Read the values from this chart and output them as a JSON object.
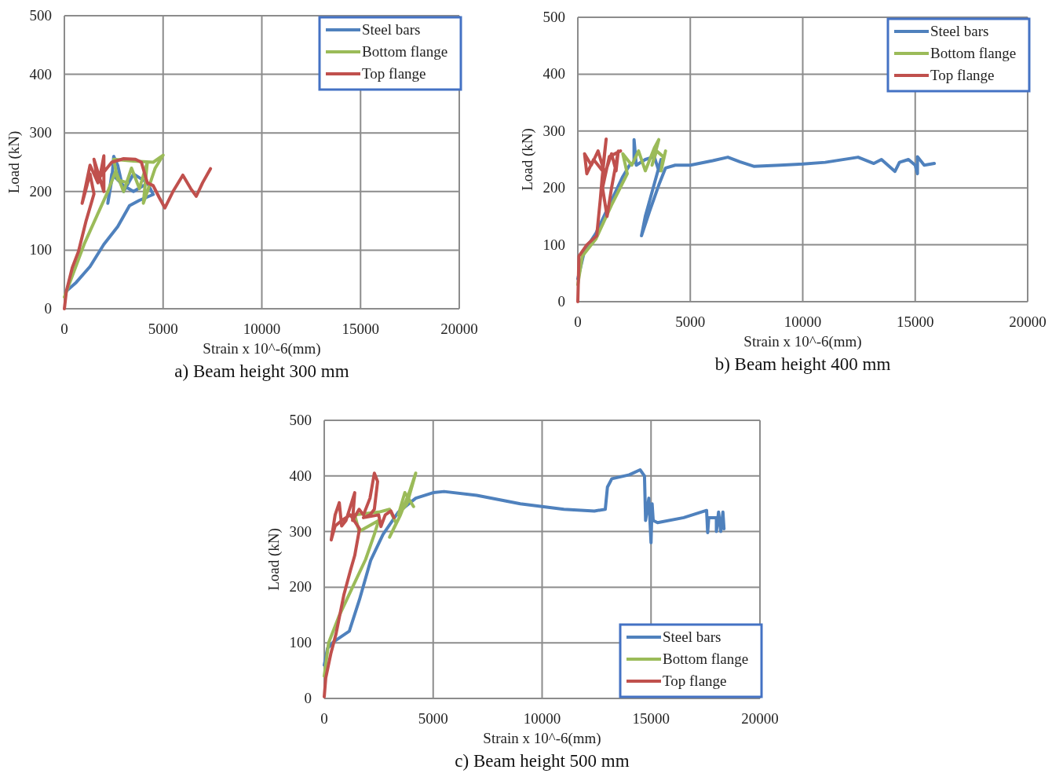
{
  "chart_data": [
    {
      "type": "line",
      "title": "a) Beam height 300 mm",
      "xlabel": "Strain x 10^-6(mm)",
      "ylabel": "Load (kN)",
      "xlim": [
        0,
        20000
      ],
      "ylim": [
        0,
        500
      ],
      "xticks": [
        0,
        5000,
        10000,
        15000,
        20000
      ],
      "yticks": [
        0,
        100,
        200,
        300,
        400,
        500
      ],
      "grid": true,
      "legend": "top right",
      "series": [
        {
          "name": "Steel bars",
          "color": "#4f81bd",
          "x": [
            100,
            600,
            1300,
            2000,
            2700,
            3300,
            3800,
            4500,
            4200,
            3500,
            3000,
            2700,
            2500,
            2400,
            2200,
            2400,
            3000,
            3500,
            4000
          ],
          "values": [
            30,
            45,
            72,
            110,
            140,
            176,
            185,
            195,
            215,
            230,
            200,
            245,
            260,
            220,
            180,
            230,
            210,
            200,
            210
          ]
        },
        {
          "name": "Bottom flange",
          "color": "#9bbb59",
          "x": [
            0,
            1000,
            1800,
            2200,
            2600,
            3000,
            3400,
            3800,
            4200,
            4000,
            4600,
            5000,
            4500,
            3500,
            2500,
            2700,
            3200
          ],
          "values": [
            20,
            110,
            170,
            200,
            235,
            200,
            240,
            205,
            250,
            180,
            240,
            262,
            250,
            252,
            255,
            220,
            215
          ]
        },
        {
          "name": "Top flange",
          "color": "#c0504d",
          "x": [
            0,
            100,
            400,
            716,
            1100,
            1500,
            1300,
            900,
            1300,
            1700,
            1500,
            2000,
            2000,
            1800,
            2400,
            3000,
            3600,
            3900,
            4200,
            4500,
            4800,
            5090,
            5500,
            6000,
            6400,
            6680,
            7000,
            7400
          ],
          "values": [
            0,
            30,
            70,
            98,
            150,
            196,
            230,
            180,
            245,
            215,
            255,
            200,
            261,
            225,
            250,
            256,
            255,
            250,
            215,
            210,
            190,
            172,
            200,
            228,
            205,
            192,
            215,
            239
          ]
        }
      ]
    },
    {
      "type": "line",
      "title": "b) Beam height 400 mm",
      "xlabel": "Strain x 10^-6(mm)",
      "ylabel": "Load (kN)",
      "xlim": [
        0,
        20000
      ],
      "ylim": [
        0,
        500
      ],
      "xticks": [
        0,
        5000,
        10000,
        15000,
        20000
      ],
      "yticks": [
        0,
        100,
        200,
        300,
        400,
        500
      ],
      "grid": true,
      "legend": "top right",
      "series": [
        {
          "name": "Steel bars",
          "color": "#4f81bd",
          "x": [
            0,
            300,
            800,
            1400,
            2000,
            2300,
            2500,
            2500,
            2600,
            3000,
            3400,
            3600,
            3700,
            3000,
            2830,
            3200,
            3600,
            3900,
            4330,
            5000,
            6000,
            6670,
            7200,
            7820,
            9000,
            10000,
            11000,
            12460,
            13160,
            13500,
            14100,
            14300,
            14700,
            15000,
            15100,
            15100,
            15400,
            15850
          ],
          "values": [
            40,
            90,
            120,
            170,
            220,
            240,
            245,
            285,
            240,
            250,
            255,
            230,
            250,
            150,
            116,
            160,
            205,
            235,
            240,
            240,
            248,
            254,
            246,
            238,
            240,
            242,
            245,
            254,
            243,
            250,
            229,
            245,
            250,
            240,
            225,
            255,
            240,
            243
          ]
        },
        {
          "name": "Bottom flange",
          "color": "#9bbb59",
          "x": [
            0,
            200,
            800,
            1500,
            2200,
            2000,
            2400,
            2700,
            3000,
            3400,
            3600,
            3300,
            3500,
            3800,
            3700,
            3900
          ],
          "values": [
            30,
            80,
            110,
            170,
            225,
            260,
            240,
            265,
            230,
            270,
            285,
            240,
            265,
            255,
            230,
            265
          ]
        },
        {
          "name": "Top flange",
          "color": "#c0504d",
          "x": [
            0,
            50,
            400,
            840,
            1000,
            1080,
            1260,
            1100,
            700,
            400,
            300,
            600,
            900,
            1200,
            1500,
            1700,
            1800,
            1500,
            1300,
            1100,
            1400,
            1900
          ],
          "values": [
            0,
            80,
            100,
            116,
            180,
            217,
            286,
            230,
            250,
            225,
            260,
            240,
            265,
            225,
            260,
            230,
            265,
            200,
            150,
            200,
            255,
            265
          ]
        }
      ]
    },
    {
      "type": "line",
      "title": "c) Beam height 500 mm",
      "xlabel": "Strain x 10^-6(mm)",
      "ylabel": "Load (kN)",
      "xlim": [
        0,
        20000
      ],
      "ylim": [
        0,
        500
      ],
      "xticks": [
        0,
        5000,
        10000,
        15000,
        20000
      ],
      "yticks": [
        0,
        100,
        200,
        300,
        400,
        500
      ],
      "grid": true,
      "legend": "bottom right",
      "series": [
        {
          "name": "Steel bars",
          "color": "#4f81bd",
          "x": [
            0,
            150,
            430,
            1150,
            1620,
            2130,
            2700,
            3400,
            4200,
            5000,
            5500,
            7000,
            9000,
            11000,
            12400,
            12900,
            13000,
            13200,
            14000,
            14500,
            14700,
            14750,
            14900,
            15000,
            15050,
            15100,
            15300,
            16500,
            17550,
            17600,
            17650,
            18000,
            18000,
            18100,
            18200,
            18300,
            18350
          ],
          "values": [
            60,
            90,
            102,
            121,
            178,
            248,
            295,
            335,
            360,
            370,
            372,
            365,
            350,
            340,
            337,
            340,
            380,
            395,
            402,
            411,
            400,
            320,
            360,
            280,
            350,
            320,
            316,
            325,
            338,
            298,
            325,
            325,
            300,
            335,
            300,
            335,
            305
          ]
        },
        {
          "name": "Bottom flange",
          "color": "#9bbb59",
          "x": [
            0,
            200,
            700,
            1300,
            1900,
            2300,
            2500,
            1600,
            1400,
            2500,
            3000,
            3300,
            3000,
            3500,
            3900,
            4200,
            3800,
            3400,
            3700,
            4100
          ],
          "values": [
            40,
            100,
            150,
            200,
            250,
            295,
            320,
            300,
            330,
            335,
            340,
            315,
            290,
            330,
            370,
            405,
            350,
            330,
            370,
            345
          ]
        },
        {
          "name": "Top flange",
          "color": "#c0504d",
          "x": [
            0,
            70,
            300,
            540,
            900,
            1200,
            1400,
            1620,
            1200,
            800,
            500,
            320,
            500,
            690,
            800,
            1000,
            1200,
            1400,
            1300,
            1600,
            1800,
            2100,
            2300,
            2450,
            2300,
            2100,
            1800,
            2500,
            2600,
            2800,
            3060,
            3200
          ],
          "values": [
            3,
            37,
            80,
            116,
            186,
            230,
            257,
            305,
            330,
            320,
            310,
            285,
            330,
            352,
            310,
            320,
            345,
            370,
            320,
            340,
            330,
            360,
            405,
            390,
            340,
            330,
            325,
            330,
            309,
            330,
            337,
            325
          ]
        }
      ]
    }
  ]
}
